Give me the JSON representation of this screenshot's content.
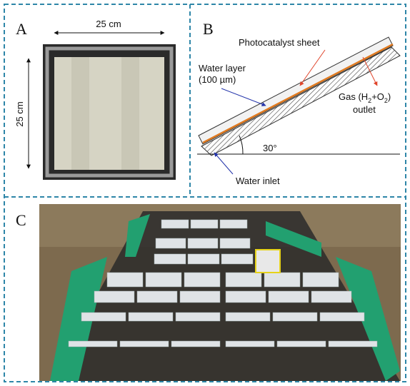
{
  "panel_a": {
    "letter": "A",
    "width_label": "25 cm",
    "height_label": "25 cm"
  },
  "panel_b": {
    "letter": "B",
    "sheet_label": "Photocatalyst sheet",
    "water_layer_label": [
      "Water layer",
      "(100 µm)"
    ],
    "gas_label": [
      "Gas (H",
      "2",
      "+O",
      "2",
      ")"
    ],
    "outlet_label": "outlet",
    "angle_label": "30°",
    "inlet_label": "Water inlet"
  },
  "panel_c": {
    "letter": "C"
  }
}
